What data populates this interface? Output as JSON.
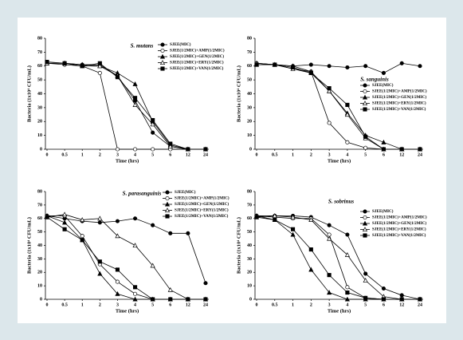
{
  "chart_data": [
    {
      "type": "line",
      "title": "S. mutans",
      "x_label": "Time (hrs)",
      "y_label": "Bacteria (1x10⁴ CFU/mL)",
      "categories": [
        "0",
        "0.5",
        "1",
        "2",
        "3",
        "4",
        "5",
        "6",
        "12",
        "24"
      ],
      "ylim": [
        0,
        80
      ],
      "yticks": [
        0,
        10,
        20,
        30,
        40,
        50,
        60,
        70,
        80
      ],
      "series": [
        {
          "name": "SJEE(MIC)",
          "color": "#000",
          "marker": "circle-filled",
          "values": [
            62,
            62,
            61,
            61,
            53,
            35,
            12,
            2,
            0,
            0
          ]
        },
        {
          "name": "SJEE(1/2MIC)+AMP(1/2MIC)",
          "color": "#000",
          "marker": "circle-open",
          "values": [
            62,
            61,
            60,
            55,
            0,
            0,
            0,
            0,
            0,
            0
          ]
        },
        {
          "name": "SJEE(1/2MIC)+GEN(1/2MIC)",
          "color": "#000",
          "marker": "triangle-filled",
          "values": [
            62,
            62,
            61,
            60,
            55,
            47,
            20,
            3,
            0,
            0
          ]
        },
        {
          "name": "SJEE(1/2MIC)+ERY(1/2MIC)",
          "color": "#000",
          "marker": "triangle-open",
          "values": [
            62,
            62,
            60,
            60,
            53,
            32,
            18,
            2,
            0,
            0
          ]
        },
        {
          "name": "SJEE(1/2MIC)+VAN(1/2MIC)",
          "color": "#000",
          "marker": "square-filled",
          "values": [
            63,
            62,
            60,
            62,
            52,
            37,
            21,
            4,
            0,
            0
          ]
        }
      ]
    },
    {
      "type": "line",
      "title": "S. sanguinis",
      "x_label": "Time (hrs)",
      "y_label": "Bacteria (1x10⁴ CFU/mL)",
      "categories": [
        "0",
        "0.5",
        "1",
        "2",
        "3",
        "4",
        "5",
        "6",
        "12",
        "24"
      ],
      "ylim": [
        0,
        80
      ],
      "yticks": [
        0,
        10,
        20,
        30,
        40,
        50,
        60,
        70,
        80
      ],
      "series": [
        {
          "name": "SJEE(MIC)",
          "color": "#000",
          "marker": "circle-filled",
          "values": [
            62,
            61,
            60,
            61,
            60,
            59,
            60,
            55,
            62,
            60
          ]
        },
        {
          "name": "SJEE(1/2MIC)+AMP(1/2MIC)",
          "color": "#000",
          "marker": "circle-open",
          "values": [
            62,
            61,
            58,
            56,
            19,
            5,
            1,
            0,
            0,
            0
          ]
        },
        {
          "name": "SJEE(1/2MIC)+GEN(1/2MIC)",
          "color": "#000",
          "marker": "triangle-filled",
          "values": [
            61,
            61,
            60,
            56,
            42,
            26,
            10,
            5,
            0,
            0
          ]
        },
        {
          "name": "SJEE(1/2MIC)+ERY(1/2MIC)",
          "color": "#000",
          "marker": "triangle-open",
          "values": [
            62,
            61,
            58,
            55,
            42,
            25,
            8,
            0,
            0,
            0
          ]
        },
        {
          "name": "SJEE(1/2MIC)+VAN(1/2MIC)",
          "color": "#000",
          "marker": "square-filled",
          "values": [
            61,
            61,
            59,
            55,
            44,
            32,
            9,
            0,
            0,
            0
          ]
        }
      ]
    },
    {
      "type": "line",
      "title": "S. parasanguinis",
      "x_label": "Time (hrs)",
      "y_label": "Bacteria (1x10⁴ CFU/mL)",
      "categories": [
        "0",
        "0.5",
        "1",
        "2",
        "3",
        "4",
        "5",
        "6",
        "12",
        "24"
      ],
      "ylim": [
        0,
        80
      ],
      "yticks": [
        0,
        10,
        20,
        30,
        40,
        50,
        60,
        70,
        80
      ],
      "series": [
        {
          "name": "SJEE(MIC)",
          "color": "#000",
          "marker": "circle-filled",
          "values": [
            62,
            60,
            58,
            57,
            58,
            60,
            55,
            49,
            49,
            12
          ]
        },
        {
          "name": "SJEE(1/2MIC)+AMP(1/2MIC)",
          "color": "#000",
          "marker": "circle-open",
          "values": [
            62,
            62,
            47,
            26,
            13,
            4,
            0,
            0,
            0,
            0
          ]
        },
        {
          "name": "SJEE(1/2MIC)+GEN(1/2MIC)",
          "color": "#000",
          "marker": "triangle-filled",
          "values": [
            62,
            57,
            44,
            19,
            4,
            0,
            0,
            0,
            0,
            0
          ]
        },
        {
          "name": "SJEE(1/2MIC)+ERY(1/2MIC)",
          "color": "#000",
          "marker": "triangle-open",
          "values": [
            61,
            63,
            59,
            60,
            47,
            40,
            25,
            7,
            0,
            0
          ]
        },
        {
          "name": "SJEE(1/2MIC)+VAN(1/2MIC)",
          "color": "#000",
          "marker": "square-filled",
          "values": [
            61,
            52,
            44,
            28,
            22,
            9,
            0,
            0,
            0,
            0
          ]
        }
      ]
    },
    {
      "type": "line",
      "title": "S. sobrinus",
      "x_label": "Time (hrs)",
      "y_label": "Bacteria (1x10⁴ CFU/mL)",
      "categories": [
        "0",
        "0.5",
        "1",
        "2",
        "3",
        "4",
        "5",
        "6",
        "12",
        "24"
      ],
      "ylim": [
        0,
        80
      ],
      "yticks": [
        0,
        10,
        20,
        30,
        40,
        50,
        60,
        70,
        80
      ],
      "series": [
        {
          "name": "SJEE(MIC)",
          "color": "#000",
          "marker": "circle-filled",
          "values": [
            62,
            62,
            62,
            61,
            55,
            48,
            19,
            8,
            3,
            0
          ]
        },
        {
          "name": "SJEE(1/2MIC)+AMP(1/2MIC)",
          "color": "#000",
          "marker": "circle-open",
          "values": [
            62,
            61,
            60,
            60,
            48,
            9,
            1,
            0,
            0,
            0
          ]
        },
        {
          "name": "SJEE(1/2MIC)+GEN(1/2MIC)",
          "color": "#000",
          "marker": "triangle-filled",
          "values": [
            62,
            59,
            48,
            22,
            5,
            0,
            0,
            0,
            0,
            0
          ]
        },
        {
          "name": "SJEE(1/2MIC)+ERY(1/2MIC)",
          "color": "#000",
          "marker": "triangle-open",
          "values": [
            61,
            62,
            61,
            59,
            45,
            33,
            14,
            2,
            0,
            0
          ]
        },
        {
          "name": "SJEE(1/2MIC)+VAN(1/2MIC)",
          "color": "#000",
          "marker": "square-filled",
          "values": [
            61,
            59,
            52,
            37,
            18,
            5,
            1,
            0,
            0,
            0
          ]
        }
      ]
    }
  ]
}
